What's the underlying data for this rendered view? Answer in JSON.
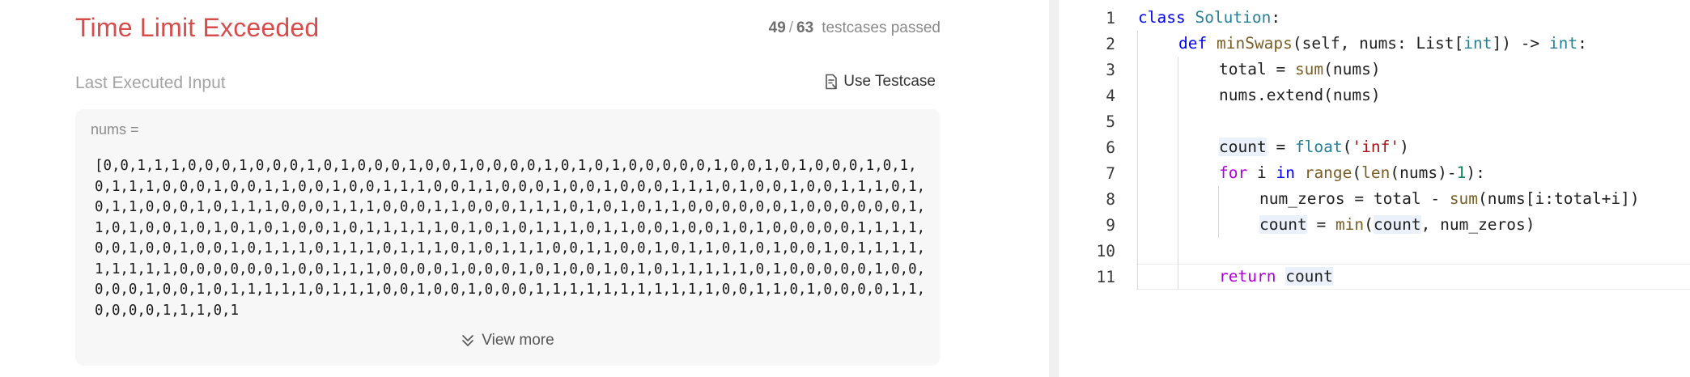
{
  "result": {
    "status_title": "Time Limit Exceeded",
    "passed_count": "49",
    "total_count": "63",
    "count_separator": "/",
    "count_suffix": "testcases passed",
    "section_label": "Last Executed Input",
    "use_testcase_label": "Use Testcase",
    "input_name": "nums =",
    "input_value": "[0,0,1,1,1,0,0,0,1,0,0,0,1,0,1,0,0,0,1,0,0,1,0,0,0,0,1,0,1,0,1,0,0,0,0,0,1,0,0,1,0,1,0,0,0,1,0,1,0,1,1,1,0,0,0,1,0,0,1,1,0,0,1,0,0,1,1,1,0,0,1,1,0,0,0,1,0,0,1,0,0,0,1,1,1,0,1,0,0,1,0,0,1,1,1,0,1,0,1,1,0,0,0,1,0,1,1,1,0,0,0,1,1,1,0,0,0,1,1,0,0,0,1,1,1,0,1,0,1,0,1,1,0,0,0,0,0,0,1,0,0,0,0,0,0,1,1,0,1,0,0,1,0,1,0,1,0,1,0,0,1,0,1,1,1,1,1,0,1,0,1,0,1,1,1,0,1,1,0,0,1,0,0,1,0,1,0,0,0,0,0,1,1,1,1,0,0,1,0,0,1,0,0,1,0,1,1,1,0,1,1,1,0,1,1,1,0,1,0,1,1,1,0,0,1,1,0,0,1,0,1,1,0,1,0,1,0,0,1,0,1,1,1,1,1,1,1,1,1,0,0,0,0,0,0,1,0,0,1,1,1,0,0,0,0,1,0,0,0,1,0,1,0,0,1,0,1,0,1,1,1,1,1,0,1,0,0,0,0,0,1,0,0,0,0,0,1,0,0,1,0,1,1,1,1,1,0,1,1,1,0,0,1,0,0,1,0,0,0,1,1,1,1,1,1,1,1,1,1,1,0,0,1,1,0,1,0,0,0,0,1,1,0,0,0,0,1,1,1,0,1",
    "view_more_label": "View more"
  },
  "editor": {
    "lines": [
      {
        "n": "1"
      },
      {
        "n": "2"
      },
      {
        "n": "3"
      },
      {
        "n": "4"
      },
      {
        "n": "5"
      },
      {
        "n": "6"
      },
      {
        "n": "7"
      },
      {
        "n": "8"
      },
      {
        "n": "9"
      },
      {
        "n": "10"
      },
      {
        "n": "11"
      }
    ],
    "tokens": {
      "l1": [
        "class",
        " ",
        "Solution",
        ":"
      ],
      "l2": [
        "def",
        " ",
        "minSwaps",
        "(self, nums: List[",
        "int",
        "]) -> ",
        "int",
        ":"
      ],
      "l3": [
        "total",
        " = ",
        "sum",
        "(nums)"
      ],
      "l4": [
        "nums.extend(nums)"
      ],
      "l6": [
        "count",
        " = ",
        "float",
        "(",
        "'inf'",
        ")"
      ],
      "l7": [
        "for",
        " i ",
        "in",
        " ",
        "range",
        "(",
        "len",
        "(nums)-",
        "1",
        "):"
      ],
      "l8": [
        "num_zeros = total - ",
        "sum",
        "(nums[i:total+i])"
      ],
      "l9": [
        "count",
        " = ",
        "min",
        "(",
        "count",
        ", num_zeros)"
      ],
      "l11": [
        "return",
        " ",
        "count"
      ]
    }
  },
  "colors": {
    "status_error": "#d94c4c",
    "keyword": "#0000ff",
    "control_keyword": "#af00db",
    "class_name": "#267f99",
    "function_name": "#795e26",
    "string": "#a31515",
    "number": "#098658"
  }
}
